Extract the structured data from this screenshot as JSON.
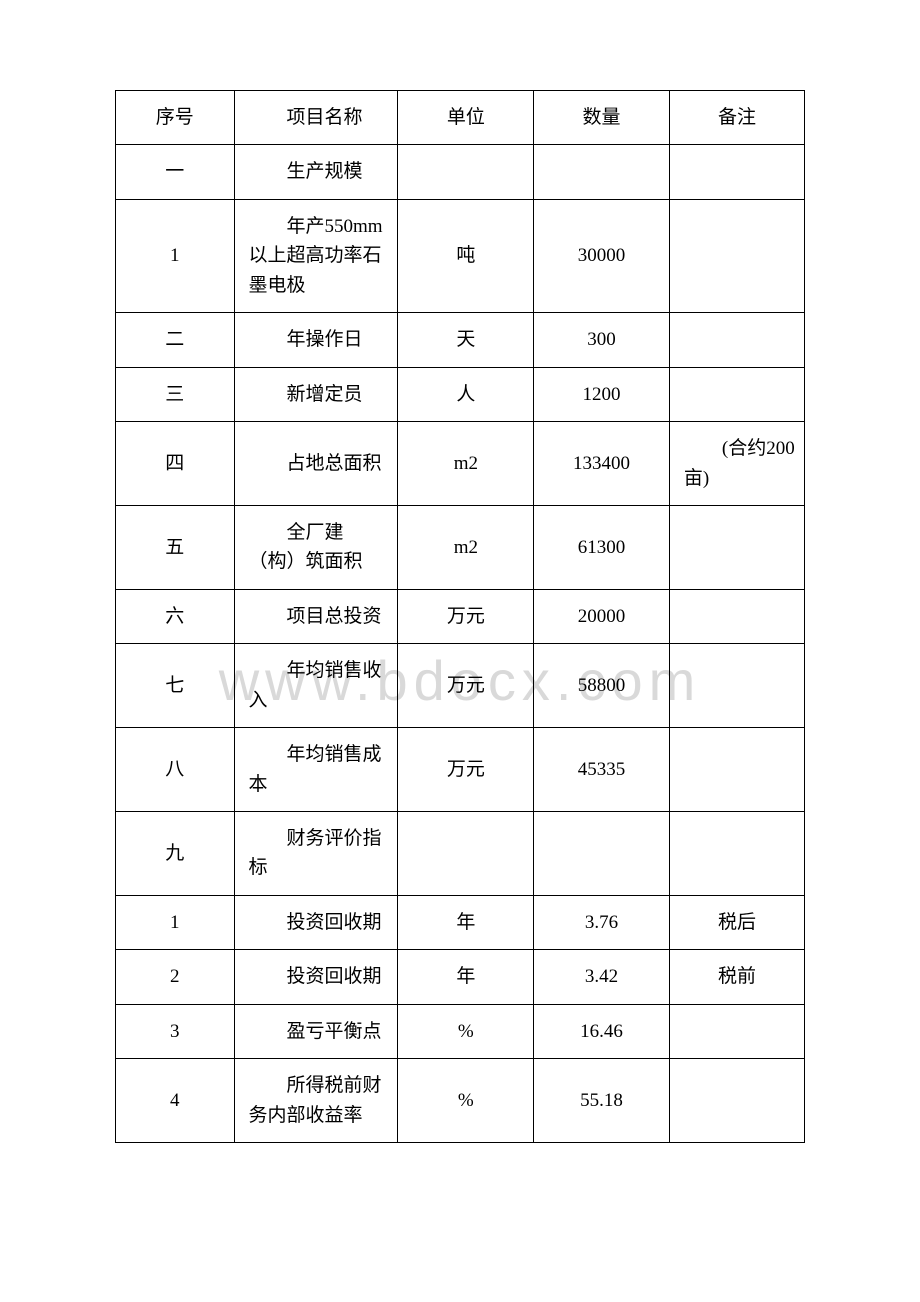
{
  "watermark": "www.bdocx.com",
  "table": {
    "columns": [
      "序号",
      "项目名称",
      "单位",
      "数量",
      "备注"
    ],
    "col_widths_pct": [
      17.2,
      23.8,
      19.7,
      19.7,
      19.6
    ],
    "border_color": "#000000",
    "background_color": "#ffffff",
    "text_color": "#000000",
    "font_size_pt": 14,
    "rows": [
      {
        "seq": "一",
        "name": "生产规模",
        "unit": "",
        "qty": "",
        "remark": ""
      },
      {
        "seq": "1",
        "name": "年产550mm 以上超高功率石墨电极",
        "unit": "吨",
        "qty": "30000",
        "remark": ""
      },
      {
        "seq": "二",
        "name": "年操作日",
        "unit": "天",
        "qty": "300",
        "remark": ""
      },
      {
        "seq": "三",
        "name": "新增定员",
        "unit": "人",
        "qty": "1200",
        "remark": ""
      },
      {
        "seq": "四",
        "name": "占地总面积",
        "unit": "m2",
        "qty": "133400",
        "remark": "(合约200 亩)"
      },
      {
        "seq": "五",
        "name": "全厂建（构）筑面积",
        "unit": "m2",
        "qty": "61300",
        "remark": ""
      },
      {
        "seq": "六",
        "name": "项目总投资",
        "unit": "万元",
        "qty": "20000",
        "remark": ""
      },
      {
        "seq": "七",
        "name": "年均销售收入",
        "unit": "万元",
        "qty": "58800",
        "remark": ""
      },
      {
        "seq": "八",
        "name": "年均销售成本",
        "unit": "万元",
        "qty": "45335",
        "remark": ""
      },
      {
        "seq": "九",
        "name": "财务评价指标",
        "unit": "",
        "qty": "",
        "remark": ""
      },
      {
        "seq": "1",
        "name": "投资回收期",
        "unit": "年",
        "qty": "3.76",
        "remark": "税后"
      },
      {
        "seq": "2",
        "name": "投资回收期",
        "unit": "年",
        "qty": "3.42",
        "remark": "税前"
      },
      {
        "seq": "3",
        "name": "盈亏平衡点",
        "unit": "%",
        "qty": "16.46",
        "remark": ""
      },
      {
        "seq": "4",
        "name": "所得税前财务内部收益率",
        "unit": "%",
        "qty": "55.18",
        "remark": ""
      }
    ]
  }
}
